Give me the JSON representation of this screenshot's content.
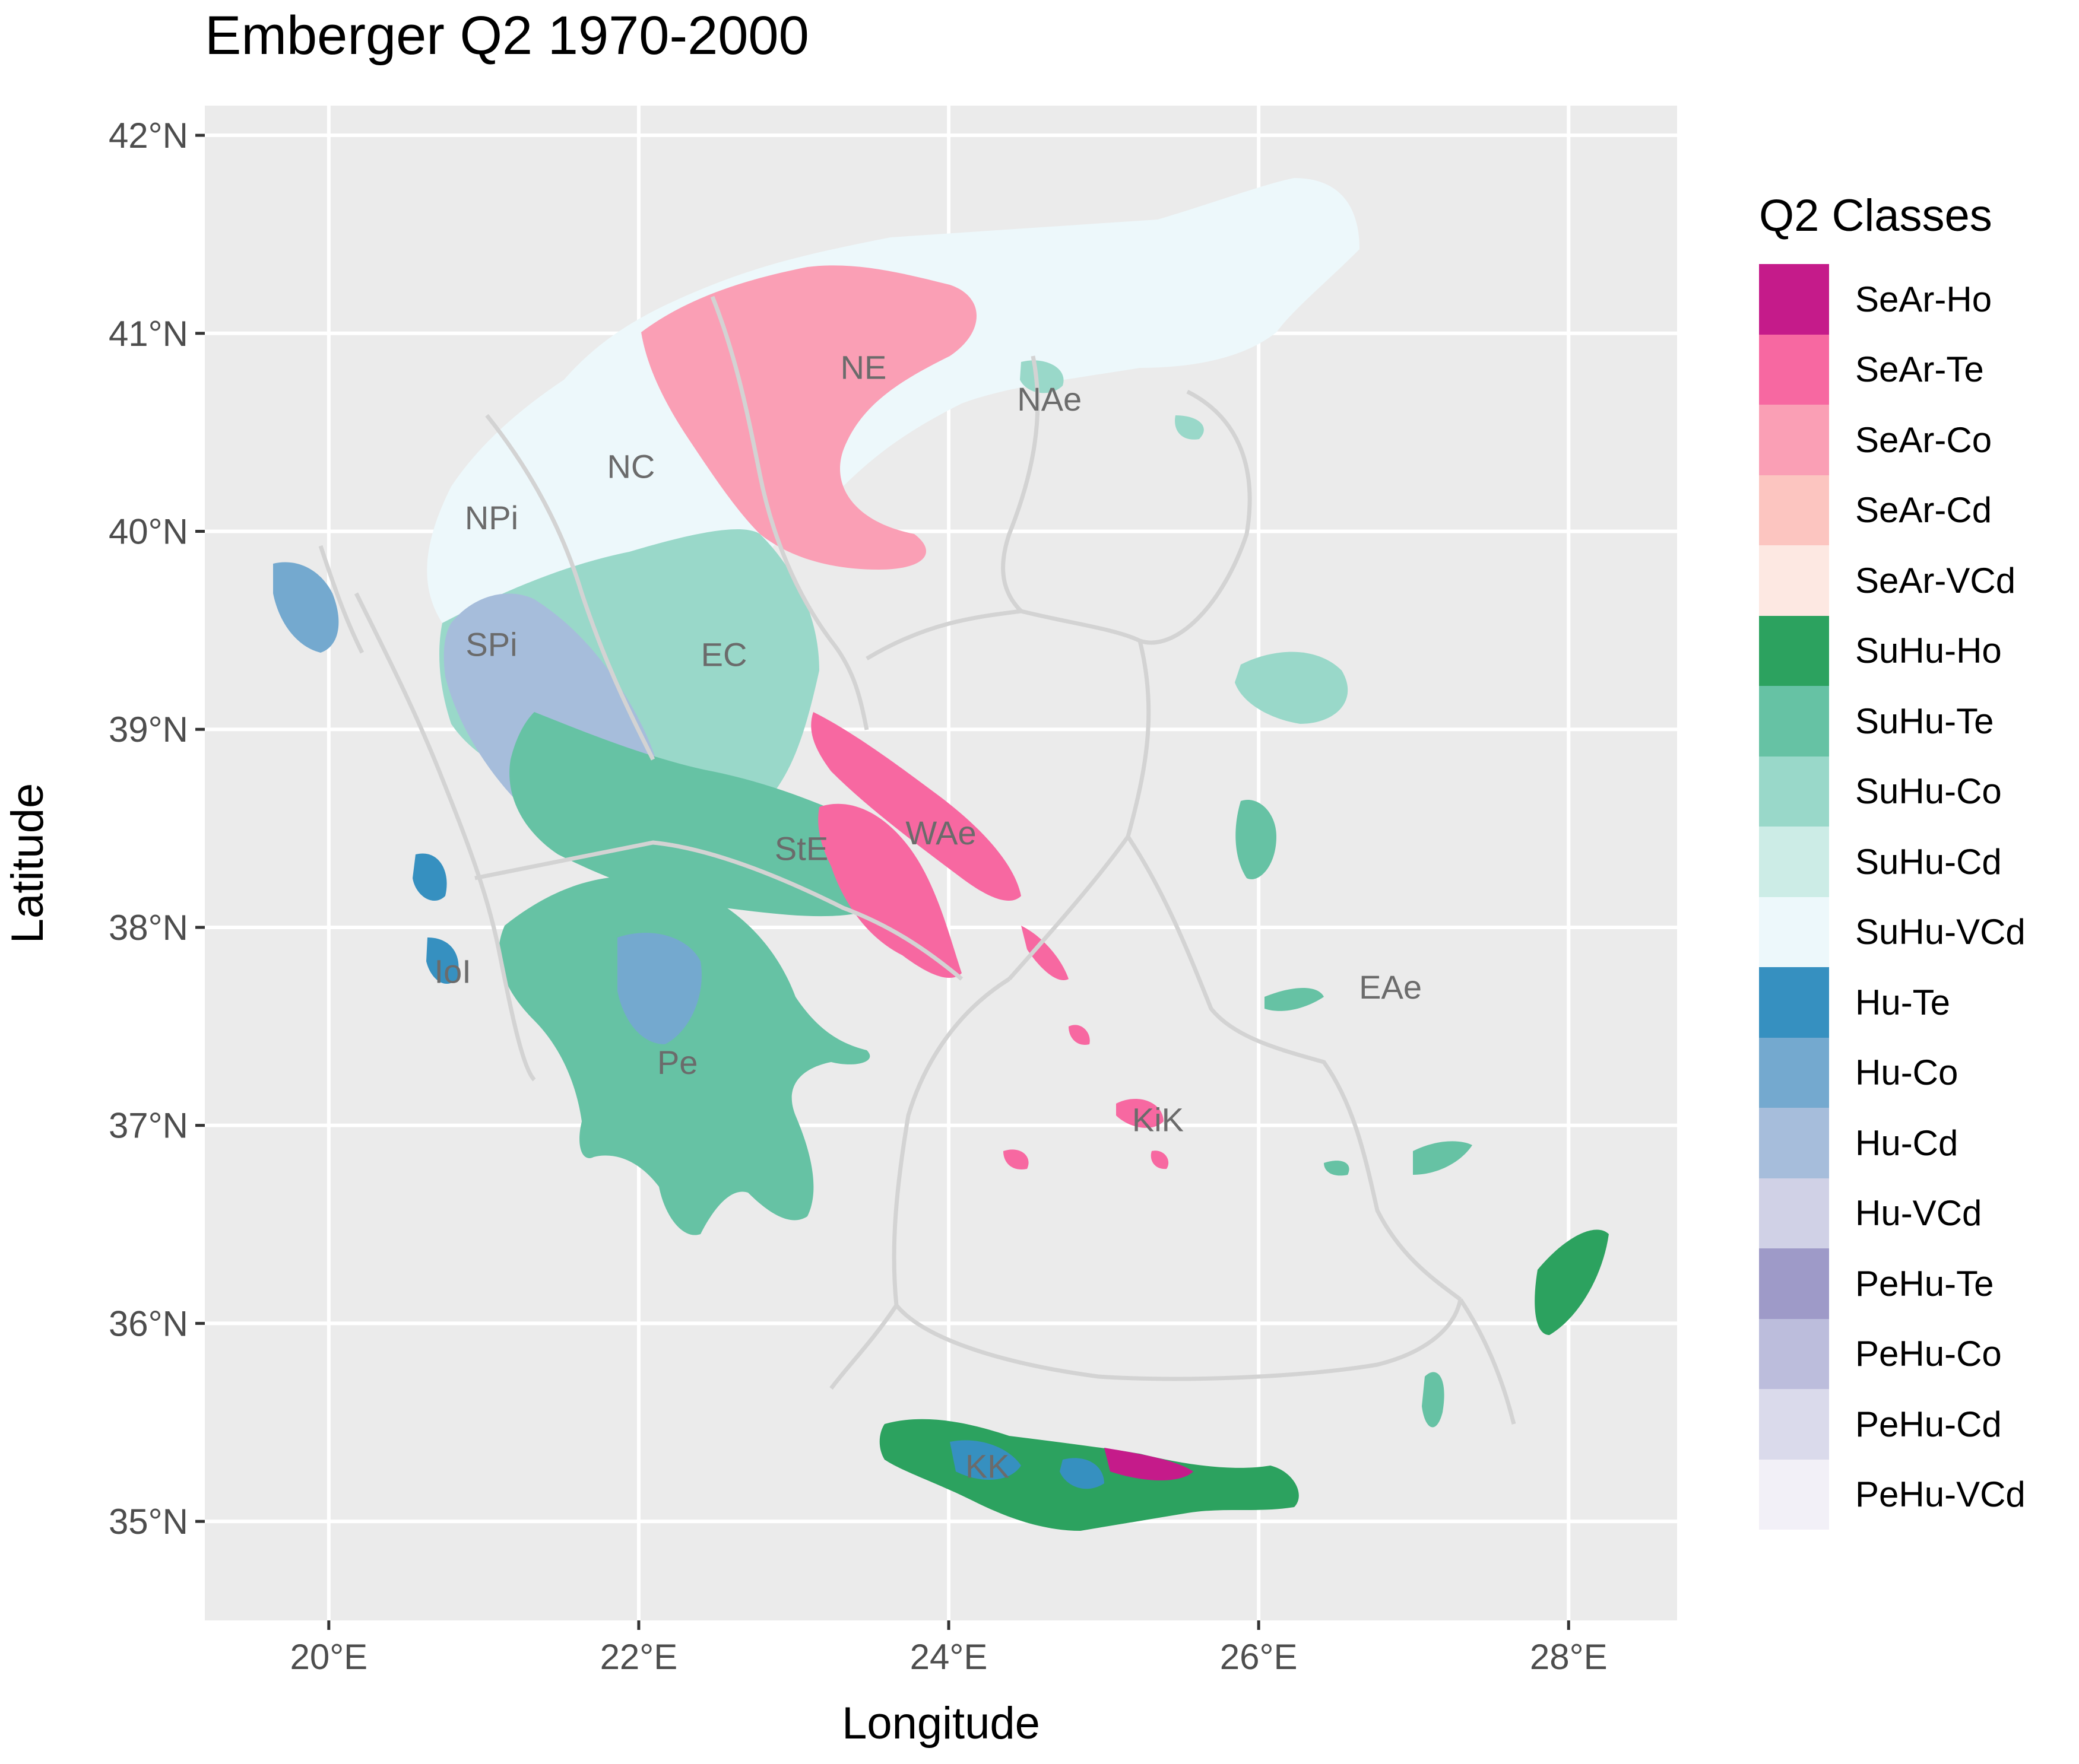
{
  "title": "Emberger Q2 1970-2000",
  "axes": {
    "x": {
      "label": "Longitude",
      "ticks": [
        "20°E",
        "22°E",
        "24°E",
        "26°E",
        "28°E"
      ],
      "tick_values": [
        20,
        22,
        24,
        26,
        28
      ],
      "range": [
        19.2,
        28.7
      ]
    },
    "y": {
      "label": "Latitude",
      "ticks": [
        "35°N",
        "36°N",
        "37°N",
        "38°N",
        "39°N",
        "40°N",
        "41°N",
        "42°N"
      ],
      "tick_values": [
        35,
        36,
        37,
        38,
        39,
        40,
        41,
        42
      ],
      "range": [
        34.5,
        42.15
      ]
    }
  },
  "grid": true,
  "legend": {
    "title": "Q2 Classes",
    "position": "right",
    "items": [
      {
        "label": "SeAr-Ho",
        "color": "#c51b8a"
      },
      {
        "label": "SeAr-Te",
        "color": "#f768a1"
      },
      {
        "label": "SeAr-Co",
        "color": "#fa9fb5"
      },
      {
        "label": "SeAr-Cd",
        "color": "#fcc5c0"
      },
      {
        "label": "SeAr-VCd",
        "color": "#fde8e2"
      },
      {
        "label": "SuHu-Ho",
        "color": "#2ca25f"
      },
      {
        "label": "SuHu-Te",
        "color": "#66c2a4"
      },
      {
        "label": "SuHu-Co",
        "color": "#99d8c9"
      },
      {
        "label": "SuHu-Cd",
        "color": "#ccece6"
      },
      {
        "label": "SuHu-VCd",
        "color": "#edf8fb"
      },
      {
        "label": "Hu-Te",
        "color": "#3690c0"
      },
      {
        "label": "Hu-Co",
        "color": "#74a9cf"
      },
      {
        "label": "Hu-Cd",
        "color": "#a6bddb"
      },
      {
        "label": "Hu-VCd",
        "color": "#d0d1e6"
      },
      {
        "label": "PeHu-Te",
        "color": "#9e9ac8"
      },
      {
        "label": "PeHu-Co",
        "color": "#bcbddc"
      },
      {
        "label": "PeHu-Cd",
        "color": "#dadaeb"
      },
      {
        "label": "PeHu-VCd",
        "color": "#f2f0f7"
      }
    ]
  },
  "regions": [
    {
      "label": "NE",
      "lon": 23.45,
      "lat": 40.83
    },
    {
      "label": "NAe",
      "lon": 24.65,
      "lat": 40.67
    },
    {
      "label": "NC",
      "lon": 21.95,
      "lat": 40.33
    },
    {
      "label": "NPi",
      "lon": 21.05,
      "lat": 40.07
    },
    {
      "label": "SPi",
      "lon": 21.05,
      "lat": 39.43
    },
    {
      "label": "EC",
      "lon": 22.55,
      "lat": 39.38
    },
    {
      "label": "StE",
      "lon": 23.05,
      "lat": 38.4
    },
    {
      "label": "WAe",
      "lon": 23.95,
      "lat": 38.48
    },
    {
      "label": "IoI",
      "lon": 20.8,
      "lat": 37.78
    },
    {
      "label": "EAe",
      "lon": 26.85,
      "lat": 37.7
    },
    {
      "label": "Pe",
      "lon": 22.25,
      "lat": 37.32
    },
    {
      "label": "KiK",
      "lon": 25.35,
      "lat": 37.03
    },
    {
      "label": "KK",
      "lon": 24.25,
      "lat": 35.28
    }
  ],
  "palette": {
    "panel_bg": "#ebebeb",
    "grid_line": "#ffffff",
    "boundary_line": "#d3d3d3"
  }
}
